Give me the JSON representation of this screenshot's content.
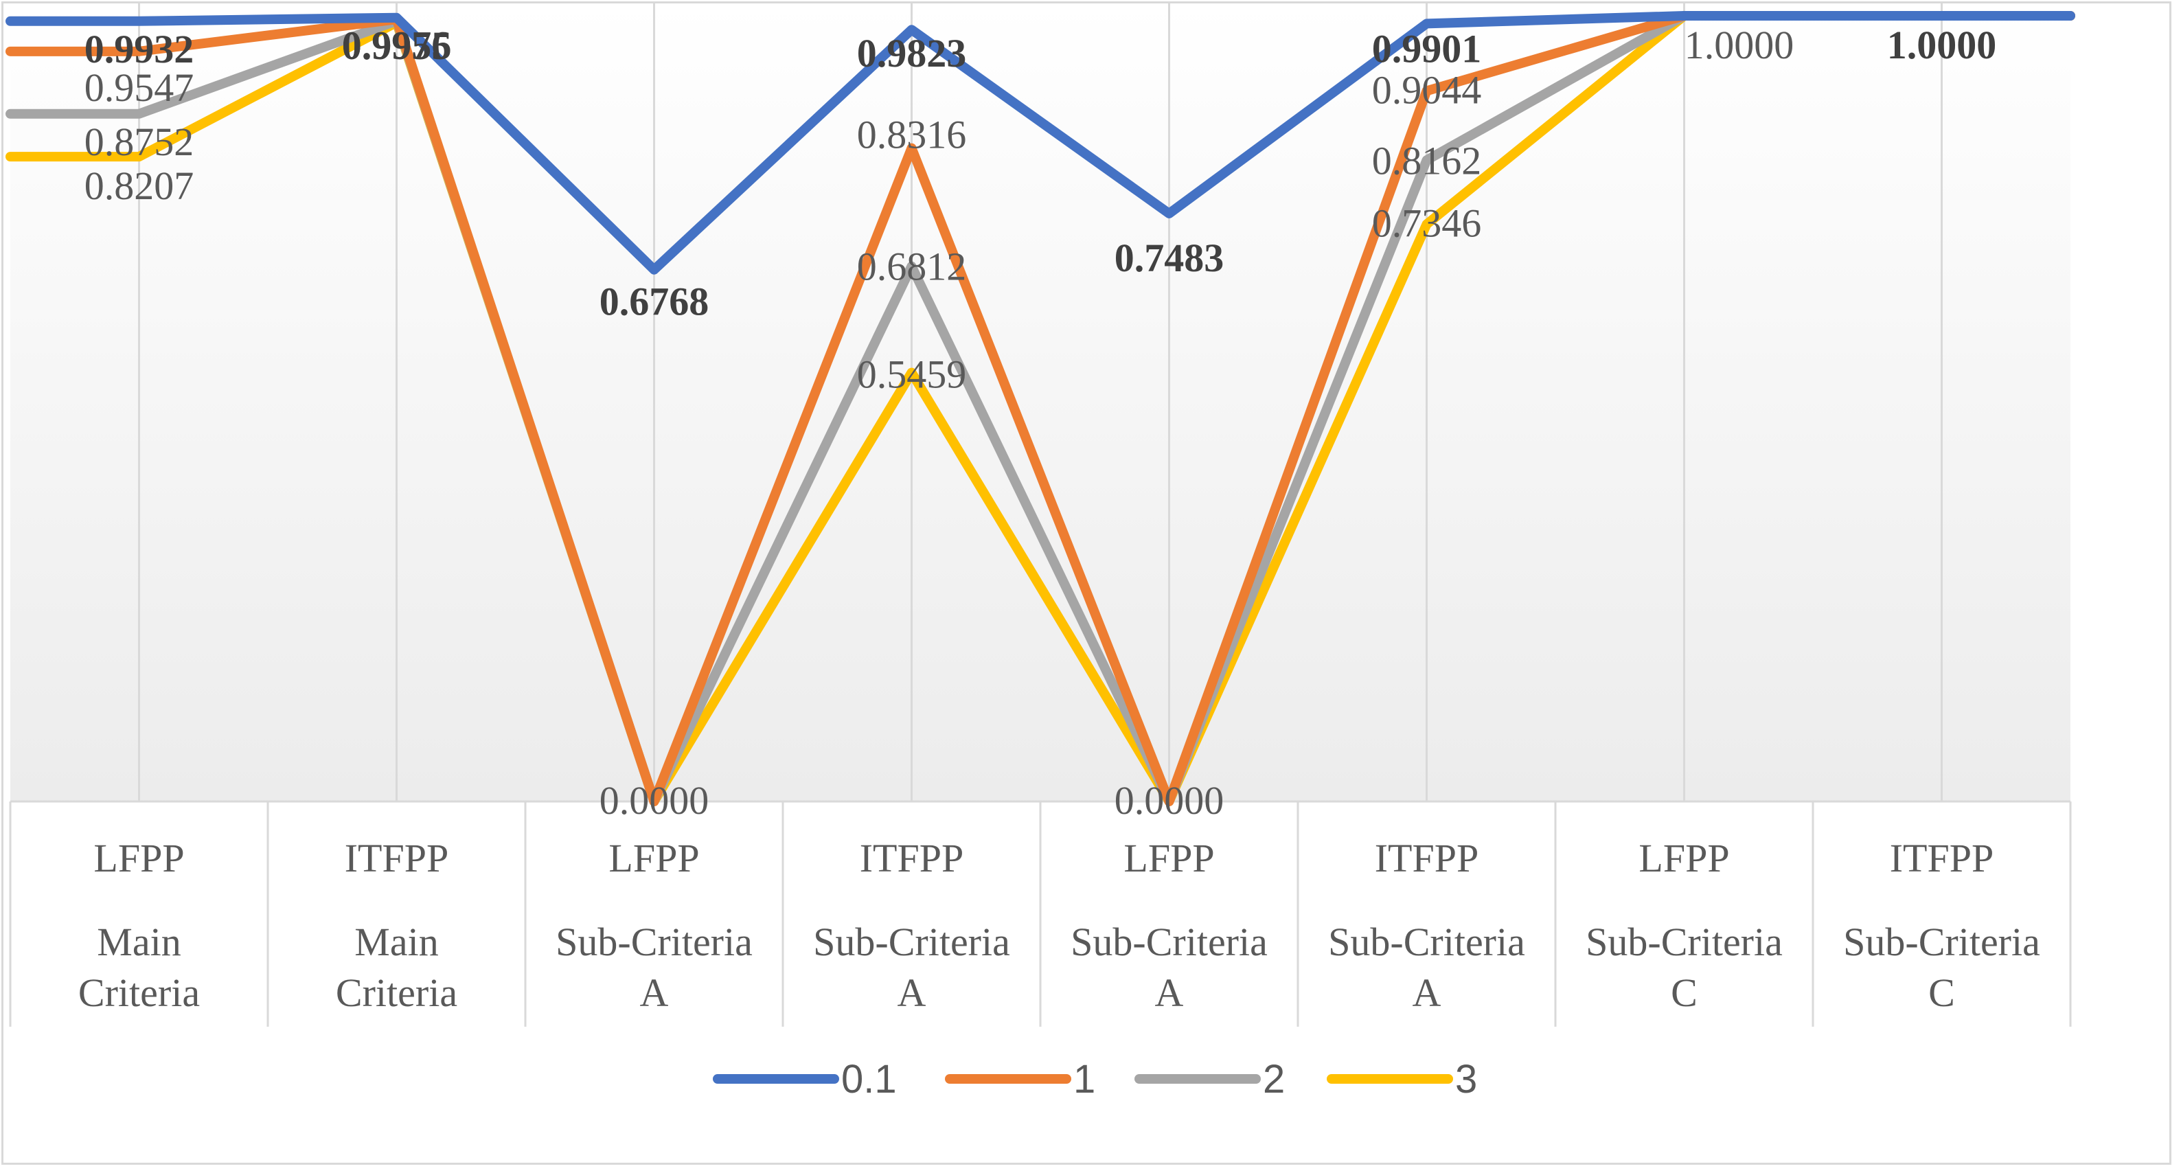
{
  "chart_data": {
    "type": "line",
    "title": "",
    "xlabel": "",
    "ylabel": "",
    "ylim": [
      0,
      1
    ],
    "grid": "vertical",
    "legend_position": "bottom",
    "categories": [
      {
        "line1": "LFPP",
        "line2": "Main",
        "line3": "Criteria"
      },
      {
        "line1": "ITFPP",
        "line2": "Main",
        "line3": "Criteria"
      },
      {
        "line1": "LFPP",
        "line2": "Sub-Criteria",
        "line3": "A"
      },
      {
        "line1": "ITFPP",
        "line2": "Sub-Criteria",
        "line3": "A"
      },
      {
        "line1": "LFPP",
        "line2": "Sub-Criteria",
        "line3": "A"
      },
      {
        "line1": "ITFPP",
        "line2": "Sub-Criteria",
        "line3": "A"
      },
      {
        "line1": "LFPP",
        "line2": "Sub-Criteria",
        "line3": "C"
      },
      {
        "line1": "ITFPP",
        "line2": "Sub-Criteria",
        "line3": "C"
      }
    ],
    "series": [
      {
        "name": "0.1",
        "color": "#4472c4",
        "values": [
          0.9932,
          0.9976,
          0.6768,
          0.9823,
          0.7483,
          0.9901,
          1.0,
          1.0
        ]
      },
      {
        "name": "1",
        "color": "#ed7d31",
        "values": [
          0.9547,
          0.9955,
          0.0,
          0.8316,
          0.0,
          0.9044,
          1.0,
          1.0
        ]
      },
      {
        "name": "2",
        "color": "#a5a5a5",
        "values": [
          0.8752,
          0.9935,
          0.0,
          0.6812,
          0.0,
          0.8162,
          1.0,
          1.0
        ]
      },
      {
        "name": "3",
        "color": "#ffc000",
        "values": [
          0.8207,
          0.9916,
          0.0,
          0.5459,
          0.0,
          0.7346,
          1.0,
          1.0
        ]
      }
    ],
    "data_labels": [
      {
        "text": "0.9932",
        "category": 0,
        "bold": true
      },
      {
        "text": "0.9547",
        "category": 0,
        "bold": false
      },
      {
        "text": "0.8752",
        "category": 0,
        "bold": false
      },
      {
        "text": "0.8207",
        "category": 0,
        "bold": false
      },
      {
        "text": "0.9976",
        "category": 1,
        "bold": true
      },
      {
        "text": "0.9955",
        "category": 1,
        "bold": true
      },
      {
        "text": "0.6768",
        "category": 2,
        "bold": true
      },
      {
        "text": "0.0000",
        "category": 2,
        "bold": false
      },
      {
        "text": "0.9823",
        "category": 3,
        "bold": true
      },
      {
        "text": "0.8316",
        "category": 3,
        "bold": false
      },
      {
        "text": "0.6812",
        "category": 3,
        "bold": false
      },
      {
        "text": "0.5459",
        "category": 3,
        "bold": false
      },
      {
        "text": "0.7483",
        "category": 4,
        "bold": true
      },
      {
        "text": "0.0000",
        "category": 4,
        "bold": false
      },
      {
        "text": "0.9901",
        "category": 5,
        "bold": true
      },
      {
        "text": "0.9044",
        "category": 5,
        "bold": false
      },
      {
        "text": "0.8162",
        "category": 5,
        "bold": false
      },
      {
        "text": "0.7346",
        "category": 5,
        "bold": false
      },
      {
        "text": "1.0000",
        "category": 6,
        "bold": false
      },
      {
        "text": "1.0000",
        "category": 7,
        "bold": true
      }
    ]
  }
}
